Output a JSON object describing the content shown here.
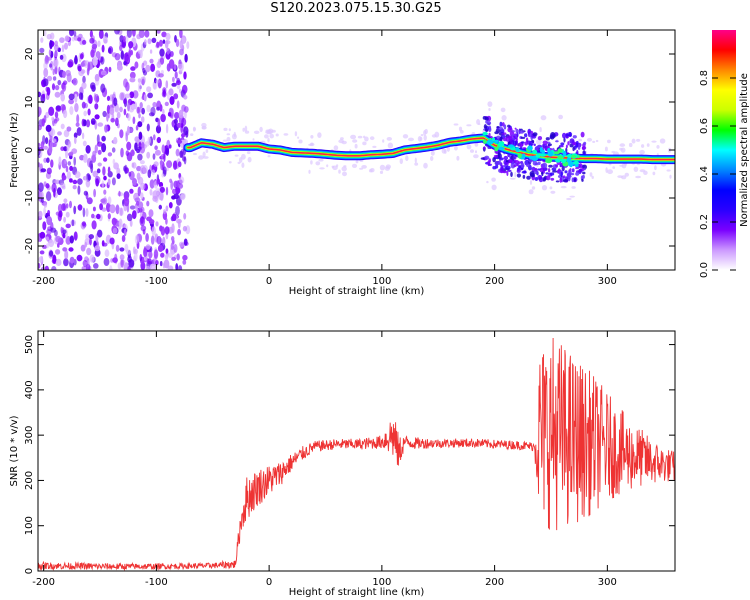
{
  "title": "S120.2023.075.15.30.G25",
  "colors": {
    "background": "#ffffff",
    "snr_line": "#ee3333",
    "ridge_color": "#ff2244"
  },
  "chart_data": [
    {
      "type": "heatmap",
      "xlabel": "Height of straight line (km)",
      "ylabel": "Frequency (Hz)",
      "xlim": [
        -205,
        360
      ],
      "ylim": [
        -25,
        25
      ],
      "x_ticks": [
        -200,
        -100,
        0,
        100,
        200,
        300
      ],
      "y_ticks": [
        -20,
        -10,
        0,
        10,
        20
      ],
      "grid": false,
      "noise_region_x": [
        -205,
        -72
      ],
      "ridge": {
        "x": [
          -70,
          -60,
          -50,
          -40,
          -30,
          -20,
          -10,
          0,
          10,
          20,
          30,
          40,
          50,
          60,
          70,
          80,
          90,
          100,
          110,
          120,
          130,
          140,
          150,
          160,
          170,
          180,
          190,
          200,
          210,
          220,
          230,
          240,
          250,
          260,
          270,
          280,
          290,
          300,
          310,
          320,
          330,
          340,
          350,
          360
        ],
        "y": [
          0.5,
          1.5,
          1.2,
          0.5,
          0.8,
          0.8,
          0.8,
          0.2,
          0.0,
          -0.5,
          -0.6,
          -0.7,
          -0.9,
          -1.1,
          -1.2,
          -1.2,
          -1.0,
          -0.9,
          -0.7,
          0.0,
          0.3,
          0.6,
          1.0,
          1.6,
          1.9,
          2.3,
          2.5,
          1.0,
          0.2,
          -0.4,
          -1.0,
          -1.2,
          -1.5,
          -1.6,
          -1.7,
          -1.8,
          -1.8,
          -1.9,
          -1.9,
          -1.9,
          -1.9,
          -2.0,
          -2.0,
          -2.0
        ]
      },
      "scatter_region_x": [
        190,
        280
      ]
    },
    {
      "type": "line",
      "xlabel": "Height of straight line (km)",
      "ylabel": "SNR (10 * v/v)",
      "xlim": [
        -205,
        360
      ],
      "ylim": [
        0,
        530
      ],
      "x_ticks": [
        -200,
        -100,
        0,
        100,
        200,
        300
      ],
      "y_ticks": [
        0,
        100,
        200,
        300,
        400,
        500
      ],
      "grid": false,
      "series": [
        {
          "name": "",
          "x": [
            -205,
            -150,
            -100,
            -50,
            -30,
            -25,
            -20,
            -10,
            0,
            10,
            20,
            30,
            40,
            60,
            80,
            100,
            105,
            110,
            115,
            120,
            130,
            150,
            180,
            200,
            220,
            235,
            240,
            250,
            260,
            270,
            280,
            290,
            300,
            310,
            320,
            330,
            340,
            350,
            360
          ],
          "y": [
            12,
            10,
            10,
            12,
            15,
            110,
            160,
            185,
            200,
            215,
            240,
            260,
            275,
            280,
            280,
            285,
            295,
            300,
            260,
            285,
            282,
            282,
            283,
            280,
            278,
            275,
            300,
            310,
            300,
            290,
            285,
            280,
            275,
            265,
            255,
            250,
            240,
            235,
            230
          ]
        }
      ],
      "envelope": {
        "x": [
          -205,
          -50,
          -30,
          -20,
          0,
          20,
          40,
          80,
          100,
          110,
          115,
          120,
          150,
          235,
          240,
          250,
          260,
          270,
          280,
          290,
          300,
          310,
          320,
          330,
          340,
          350,
          360
        ],
        "amp": [
          8,
          6,
          10,
          50,
          35,
          20,
          12,
          12,
          15,
          55,
          40,
          15,
          10,
          10,
          200,
          220,
          210,
          190,
          170,
          150,
          120,
          100,
          80,
          65,
          50,
          40,
          35
        ]
      }
    }
  ],
  "colorbar": {
    "label": "Normalized spectral amplitude",
    "range": [
      0,
      1
    ],
    "ticks": [
      "0.0",
      "0.2",
      "0.4",
      "0.6",
      "0.8"
    ],
    "tick_values": [
      0,
      0.2,
      0.4,
      0.6,
      0.8
    ],
    "colors": [
      "#ffffff",
      "#cc99ff",
      "#7a00ff",
      "#2a00ff",
      "#0000ff",
      "#0088ff",
      "#00ffff",
      "#00ff00",
      "#ccff00",
      "#ffff00",
      "#ff8800",
      "#ff0000",
      "#ff0088"
    ]
  }
}
